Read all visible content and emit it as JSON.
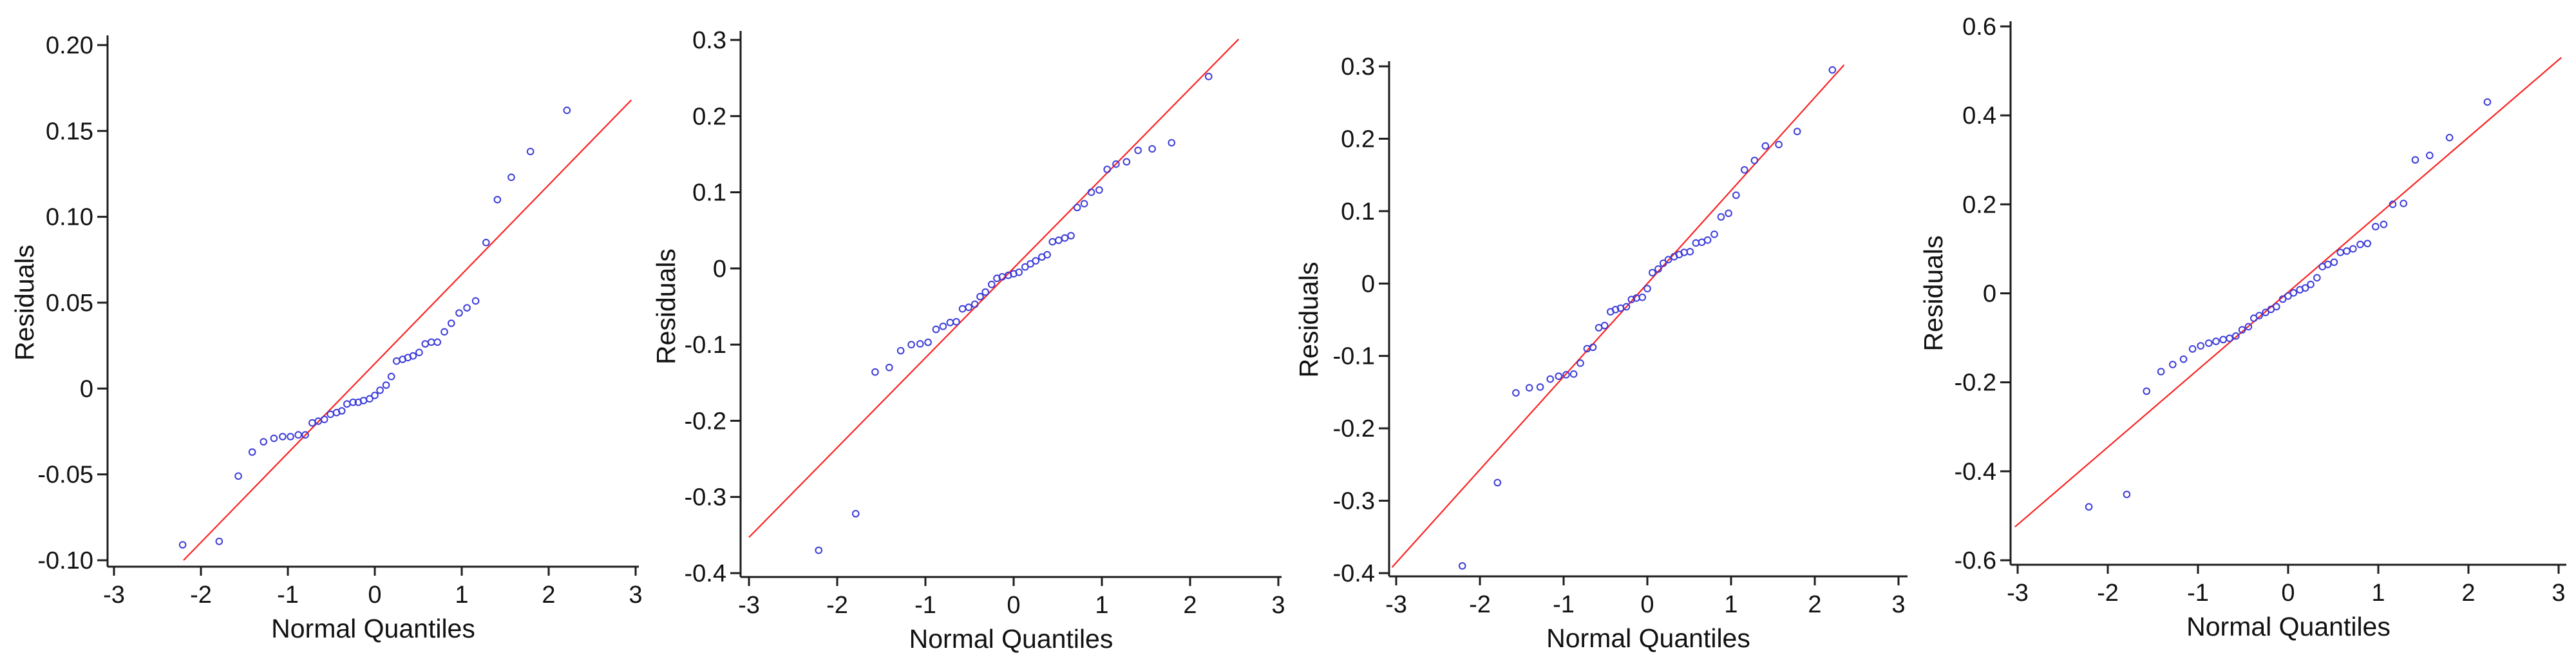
{
  "styles": {
    "background": "#ffffff",
    "axis_color": "#1c1c1c",
    "tick_label_color": "#111111",
    "point_color": "#3b3bd9",
    "ref_line_color": "#fa2222"
  },
  "chart_data": [
    {
      "type": "scatter",
      "title": "",
      "xlabel": "Normal Quantiles",
      "ylabel": "Residuals",
      "xlim": [
        -3,
        3
      ],
      "ylim": [
        -0.1,
        0.2
      ],
      "grid": false,
      "legend": false,
      "x_tick_labels": [
        "-3",
        "-2",
        "-1",
        "0",
        "1",
        "2",
        "3"
      ],
      "x_tick_values": [
        -3,
        -2,
        -1,
        0,
        1,
        2,
        3
      ],
      "y_tick_labels": [
        "0.20",
        "0.15",
        "0.10",
        "0.05",
        "0",
        "-0.05",
        "-0.10"
      ],
      "y_tick_values": [
        0.2,
        0.15,
        0.1,
        0.05,
        0,
        -0.05,
        -0.1
      ],
      "ref_line": {
        "x1": -2.2,
        "y1": -0.1,
        "x2": 2.95,
        "y2": 0.168
      },
      "x": [
        -2.21,
        -1.79,
        -1.57,
        -1.41,
        -1.28,
        -1.16,
        -1.06,
        -0.97,
        -0.88,
        -0.8,
        -0.72,
        -0.65,
        -0.58,
        -0.51,
        -0.44,
        -0.38,
        -0.32,
        -0.25,
        -0.19,
        -0.13,
        -0.06,
        0,
        0.06,
        0.13,
        0.19,
        0.25,
        0.32,
        0.38,
        0.44,
        0.51,
        0.58,
        0.65,
        0.72,
        0.8,
        0.88,
        0.97,
        1.06,
        1.16,
        1.28,
        1.41,
        1.57,
        1.79,
        2.21
      ],
      "y": [
        -0.091,
        -0.089,
        -0.051,
        -0.037,
        -0.031,
        -0.029,
        -0.028,
        -0.028,
        -0.027,
        -0.027,
        -0.02,
        -0.019,
        -0.018,
        -0.015,
        -0.014,
        -0.013,
        -0.009,
        -0.008,
        -0.008,
        -0.007,
        -0.006,
        -0.004,
        -0.001,
        0.002,
        0.007,
        0.016,
        0.017,
        0.018,
        0.019,
        0.021,
        0.026,
        0.027,
        0.027,
        0.033,
        0.038,
        0.044,
        0.047,
        0.051,
        0.085,
        0.11,
        0.123,
        0.138,
        0.162
      ]
    },
    {
      "type": "scatter",
      "title": "",
      "xlabel": "Normal Quantiles",
      "ylabel": "Residuals",
      "xlim": [
        -3,
        3
      ],
      "ylim": [
        -0.4,
        0.3
      ],
      "grid": false,
      "legend": false,
      "x_tick_labels": [
        "-3",
        "-2",
        "-1",
        "0",
        "1",
        "2",
        "3"
      ],
      "x_tick_values": [
        -3,
        -2,
        -1,
        0,
        1,
        2,
        3
      ],
      "y_tick_labels": [
        "0.3",
        "0.2",
        "0.1",
        "0",
        "-0.1",
        "-0.2",
        "-0.3",
        "-0.4"
      ],
      "y_tick_values": [
        0.3,
        0.2,
        0.1,
        0,
        -0.1,
        -0.2,
        -0.3,
        -0.4
      ],
      "ref_line": {
        "x1": -3.0,
        "y1": -0.353,
        "x2": 2.55,
        "y2": 0.301
      },
      "x": [
        -2.21,
        -1.79,
        -1.57,
        -1.41,
        -1.28,
        -1.16,
        -1.06,
        -0.97,
        -0.88,
        -0.8,
        -0.72,
        -0.65,
        -0.58,
        -0.51,
        -0.44,
        -0.38,
        -0.32,
        -0.25,
        -0.19,
        -0.13,
        -0.06,
        0,
        0.06,
        0.13,
        0.19,
        0.25,
        0.32,
        0.38,
        0.44,
        0.51,
        0.58,
        0.65,
        0.72,
        0.8,
        0.88,
        0.97,
        1.06,
        1.16,
        1.28,
        1.41,
        1.57,
        1.79,
        2.21
      ],
      "y": [
        -0.37,
        -0.322,
        -0.136,
        -0.13,
        -0.108,
        -0.1,
        -0.099,
        -0.097,
        -0.08,
        -0.076,
        -0.071,
        -0.07,
        -0.053,
        -0.051,
        -0.047,
        -0.037,
        -0.031,
        -0.021,
        -0.013,
        -0.011,
        -0.009,
        -0.007,
        -0.005,
        0.002,
        0.006,
        0.01,
        0.015,
        0.018,
        0.035,
        0.037,
        0.04,
        0.043,
        0.08,
        0.085,
        0.1,
        0.103,
        0.13,
        0.137,
        0.14,
        0.155,
        0.157,
        0.165,
        0.252
      ]
    },
    {
      "type": "scatter",
      "title": "",
      "xlabel": "Normal Quantiles",
      "ylabel": "Residuals",
      "xlim": [
        -3,
        3
      ],
      "ylim": [
        -0.4,
        0.3
      ],
      "grid": false,
      "legend": false,
      "x_tick_labels": [
        "-3",
        "-2",
        "-1",
        "0",
        "1",
        "2",
        "3"
      ],
      "x_tick_values": [
        -3,
        -2,
        -1,
        0,
        1,
        2,
        3
      ],
      "y_tick_labels": [
        "0.3",
        "0.2",
        "0.1",
        "0",
        "-0.1",
        "-0.2",
        "-0.3",
        "-0.4"
      ],
      "y_tick_values": [
        0.3,
        0.2,
        0.1,
        0,
        -0.1,
        -0.2,
        -0.3,
        -0.4
      ],
      "ref_line": {
        "x1": -3.05,
        "y1": -0.392,
        "x2": 2.35,
        "y2": 0.302
      },
      "x": [
        -2.21,
        -1.79,
        -1.57,
        -1.41,
        -1.28,
        -1.16,
        -1.06,
        -0.97,
        -0.88,
        -0.8,
        -0.72,
        -0.65,
        -0.58,
        -0.51,
        -0.44,
        -0.38,
        -0.32,
        -0.25,
        -0.19,
        -0.13,
        -0.06,
        0,
        0.06,
        0.13,
        0.19,
        0.25,
        0.32,
        0.38,
        0.44,
        0.51,
        0.58,
        0.65,
        0.72,
        0.8,
        0.88,
        0.97,
        1.06,
        1.16,
        1.28,
        1.41,
        1.57,
        1.79,
        2.21
      ],
      "y": [
        -0.39,
        -0.275,
        -0.151,
        -0.144,
        -0.143,
        -0.132,
        -0.128,
        -0.126,
        -0.125,
        -0.11,
        -0.09,
        -0.088,
        -0.061,
        -0.058,
        -0.039,
        -0.036,
        -0.034,
        -0.032,
        -0.022,
        -0.02,
        -0.019,
        -0.007,
        0.015,
        0.02,
        0.028,
        0.033,
        0.037,
        0.04,
        0.043,
        0.044,
        0.056,
        0.057,
        0.06,
        0.068,
        0.092,
        0.097,
        0.122,
        0.157,
        0.17,
        0.19,
        0.192,
        0.21,
        0.295
      ]
    },
    {
      "type": "scatter",
      "title": "",
      "xlabel": "Normal Quantiles",
      "ylabel": "Residuals",
      "xlim": [
        -3,
        3
      ],
      "ylim": [
        -0.6,
        0.6
      ],
      "grid": false,
      "legend": false,
      "x_tick_labels": [
        "-3",
        "-2",
        "-1",
        "0",
        "1",
        "2",
        "3"
      ],
      "x_tick_values": [
        -3,
        -2,
        -1,
        0,
        1,
        2,
        3
      ],
      "y_tick_labels": [
        "0.6",
        "0.4",
        "0.2",
        "0",
        "-0.2",
        "-0.4",
        "-0.6"
      ],
      "y_tick_values": [
        0.6,
        0.4,
        0.2,
        0,
        -0.2,
        -0.4,
        -0.6
      ],
      "ref_line": {
        "x1": -3.03,
        "y1": -0.525,
        "x2": 3.03,
        "y2": 0.53
      },
      "x": [
        -2.21,
        -1.79,
        -1.57,
        -1.41,
        -1.28,
        -1.16,
        -1.06,
        -0.97,
        -0.88,
        -0.8,
        -0.72,
        -0.65,
        -0.58,
        -0.51,
        -0.44,
        -0.38,
        -0.32,
        -0.25,
        -0.19,
        -0.13,
        -0.06,
        0,
        0.06,
        0.13,
        0.19,
        0.25,
        0.32,
        0.38,
        0.44,
        0.51,
        0.58,
        0.65,
        0.72,
        0.8,
        0.88,
        0.97,
        1.06,
        1.16,
        1.28,
        1.41,
        1.57,
        1.79,
        2.21
      ],
      "y": [
        -0.48,
        -0.452,
        -0.22,
        -0.176,
        -0.16,
        -0.148,
        -0.125,
        -0.118,
        -0.112,
        -0.108,
        -0.104,
        -0.101,
        -0.096,
        -0.082,
        -0.075,
        -0.056,
        -0.05,
        -0.043,
        -0.036,
        -0.03,
        -0.013,
        -0.006,
        0.001,
        0.008,
        0.012,
        0.02,
        0.035,
        0.06,
        0.065,
        0.07,
        0.092,
        0.095,
        0.1,
        0.11,
        0.112,
        0.15,
        0.155,
        0.2,
        0.202,
        0.3,
        0.31,
        0.35,
        0.43
      ]
    }
  ]
}
